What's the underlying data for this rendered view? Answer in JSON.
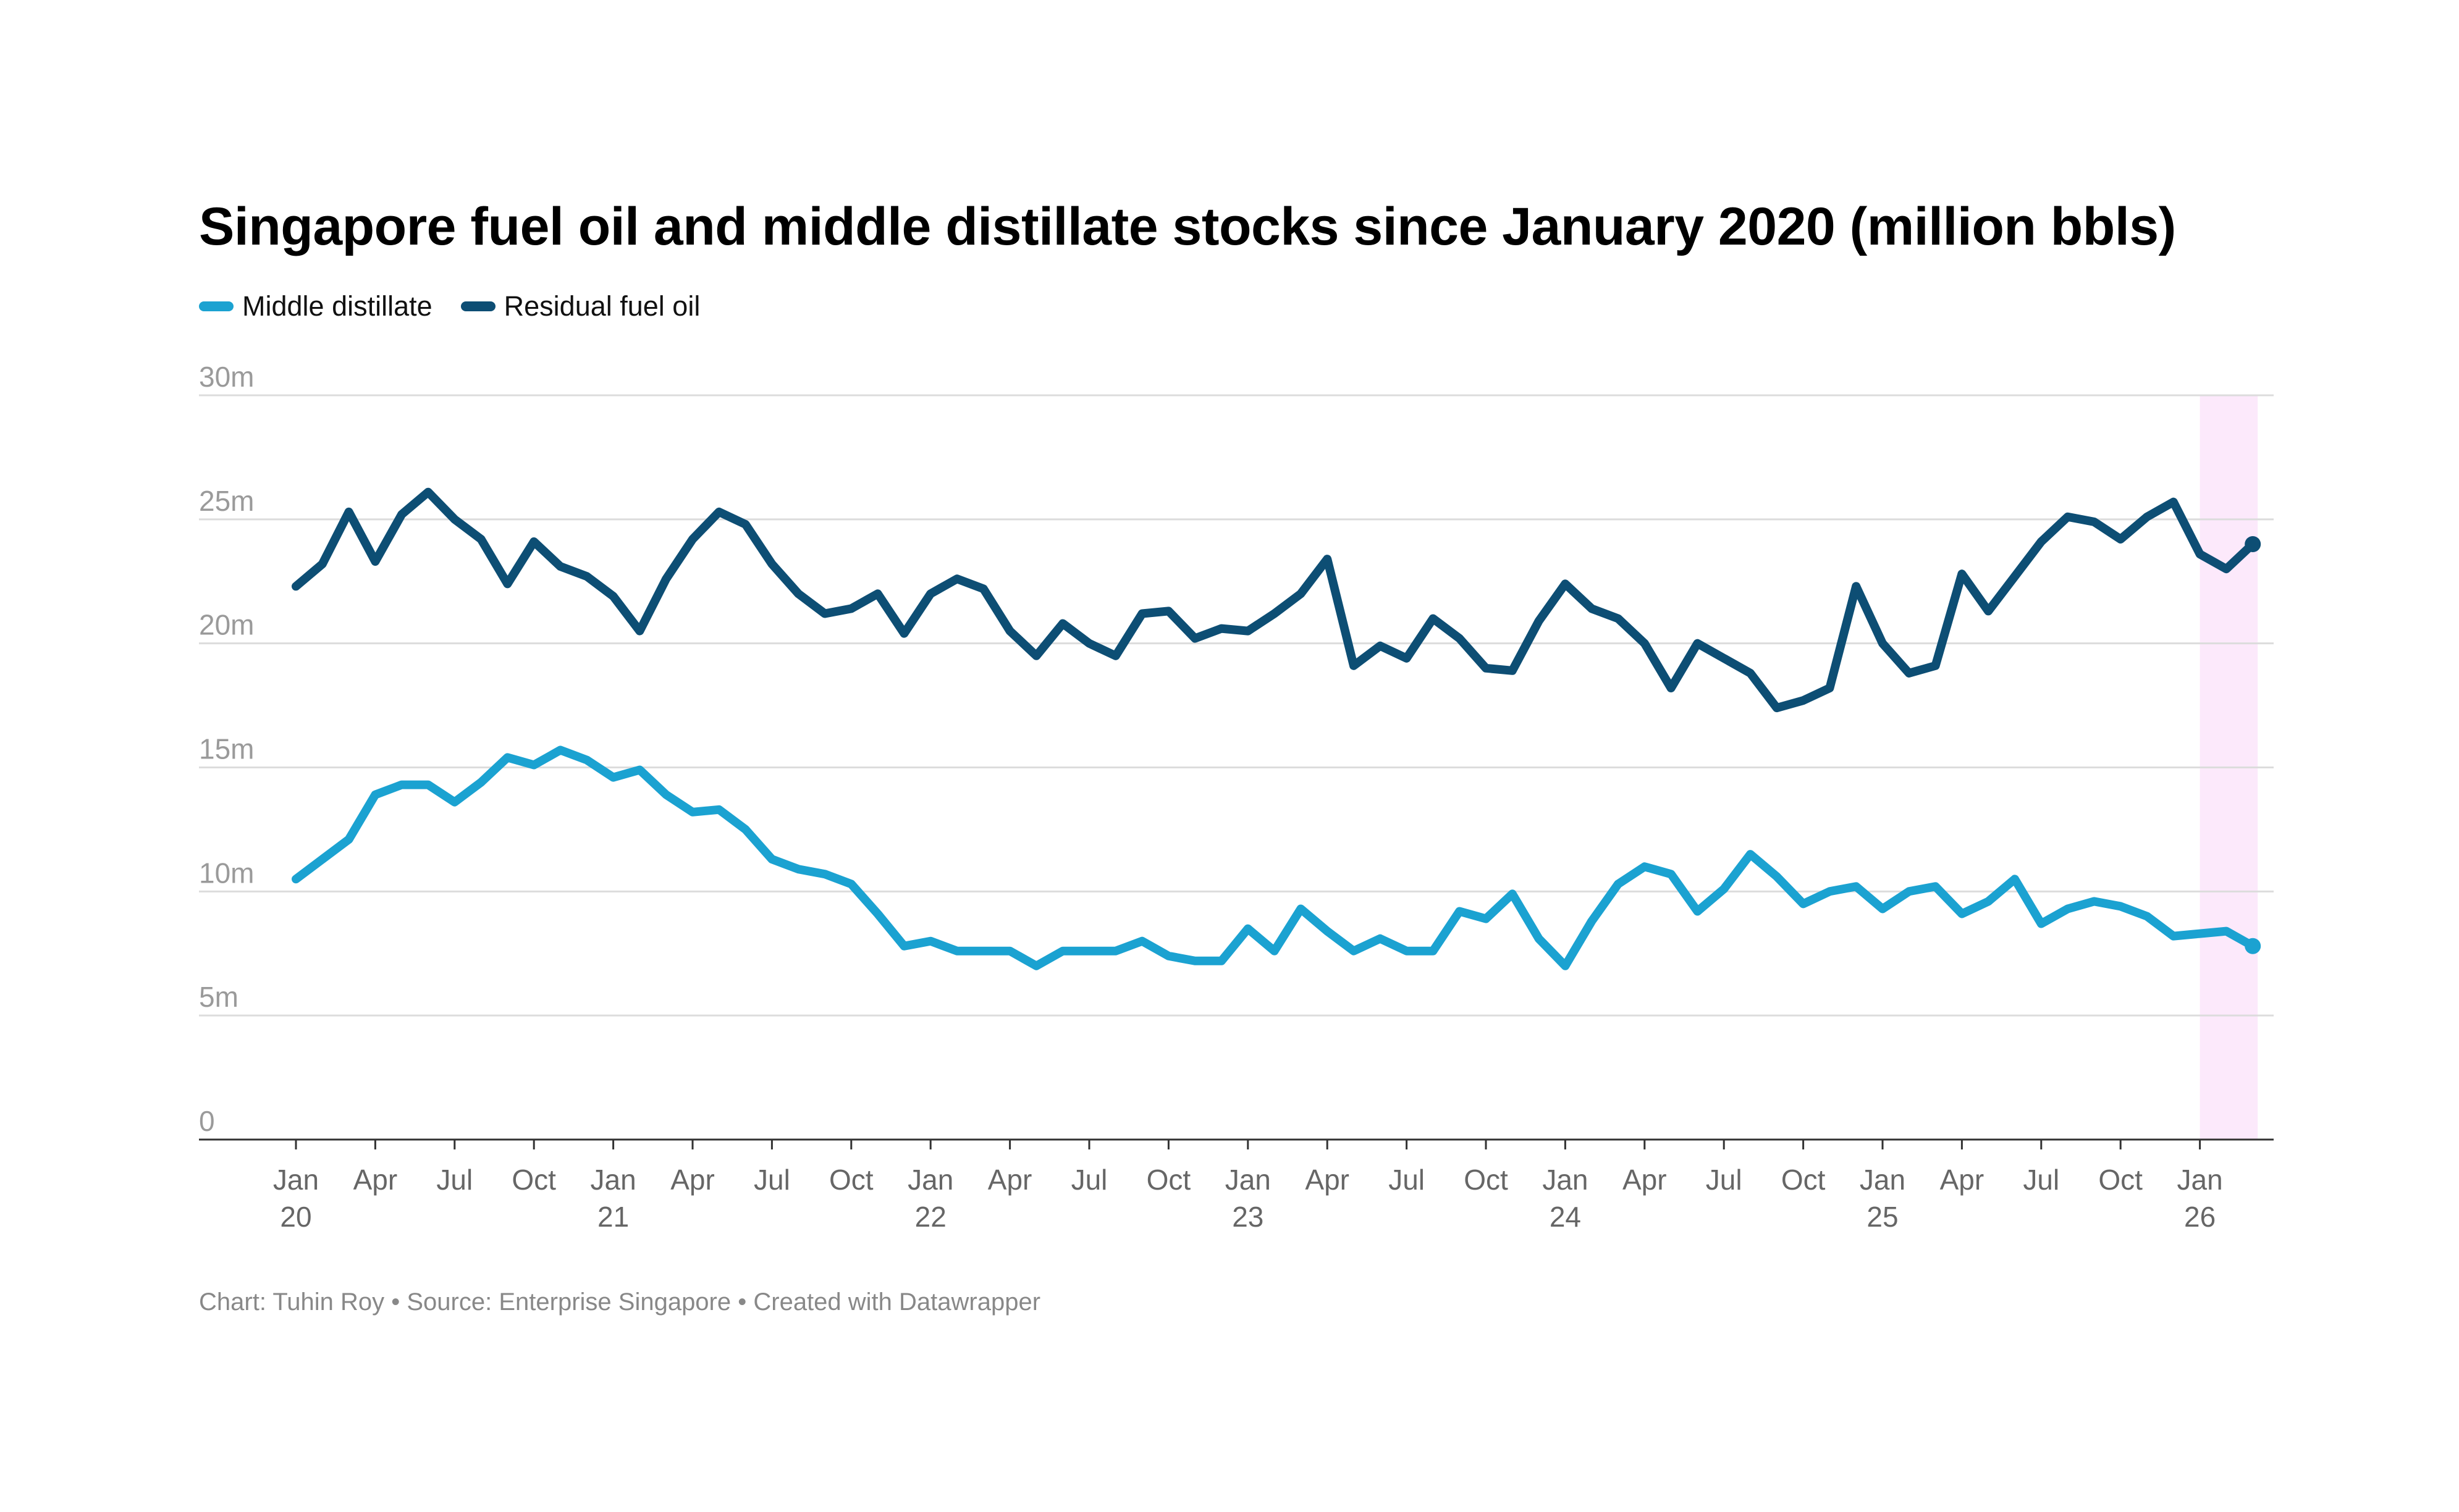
{
  "footer": {
    "credit": "Chart: Tuhin Roy",
    "separator": " • ",
    "source": "Source: Enterprise Singapore",
    "tool": "Created with Datawrapper"
  },
  "chart_data": {
    "type": "line",
    "title": "Singapore fuel oil and middle distillate stocks since January 2020 (million bbls)",
    "ylabel": "",
    "xlabel": "",
    "ylim": [
      0,
      30
    ],
    "yticks": [
      {
        "value": 0,
        "label": "0"
      },
      {
        "value": 5,
        "label": "5m"
      },
      {
        "value": 10,
        "label": "10m"
      },
      {
        "value": 15,
        "label": "15m"
      },
      {
        "value": 20,
        "label": "20m"
      },
      {
        "value": 25,
        "label": "25m"
      },
      {
        "value": 30,
        "label": "30m"
      }
    ],
    "start": {
      "year": 2020,
      "month": 1
    },
    "xticks": [
      {
        "index": 0,
        "label": "Jan",
        "year": "20"
      },
      {
        "index": 3,
        "label": "Apr"
      },
      {
        "index": 6,
        "label": "Jul"
      },
      {
        "index": 9,
        "label": "Oct"
      },
      {
        "index": 12,
        "label": "Jan",
        "year": "21"
      },
      {
        "index": 15,
        "label": "Apr"
      },
      {
        "index": 18,
        "label": "Jul"
      },
      {
        "index": 21,
        "label": "Oct"
      },
      {
        "index": 24,
        "label": "Jan",
        "year": "22"
      },
      {
        "index": 27,
        "label": "Apr"
      },
      {
        "index": 30,
        "label": "Jul"
      },
      {
        "index": 33,
        "label": "Oct"
      },
      {
        "index": 36,
        "label": "Jan",
        "year": "23"
      },
      {
        "index": 39,
        "label": "Apr"
      },
      {
        "index": 42,
        "label": "Jul"
      },
      {
        "index": 45,
        "label": "Oct"
      },
      {
        "index": 48,
        "label": "Jan",
        "year": "24"
      },
      {
        "index": 51,
        "label": "Apr"
      },
      {
        "index": 54,
        "label": "Jul"
      },
      {
        "index": 57,
        "label": "Oct"
      },
      {
        "index": 60,
        "label": "Jan",
        "year": "25"
      },
      {
        "index": 63,
        "label": "Apr"
      },
      {
        "index": 66,
        "label": "Jul"
      },
      {
        "index": 69,
        "label": "Oct"
      },
      {
        "index": 72,
        "label": "Jan",
        "year": "26"
      }
    ],
    "highlight": {
      "from_index": 72,
      "to_index": 74,
      "color": "#fce9fb"
    },
    "series": [
      {
        "name": "Middle distillate",
        "color": "#1ba2d1",
        "values": [
          10.5,
          11.3,
          12.1,
          13.9,
          14.3,
          14.3,
          13.6,
          14.4,
          15.4,
          15.1,
          15.7,
          15.3,
          14.6,
          14.9,
          13.9,
          13.2,
          13.3,
          12.5,
          11.3,
          10.9,
          10.7,
          10.3,
          9.1,
          7.8,
          8.0,
          7.6,
          7.6,
          7.6,
          7.0,
          7.6,
          7.6,
          7.6,
          8.0,
          7.4,
          7.2,
          7.2,
          8.5,
          7.6,
          9.3,
          8.4,
          7.6,
          8.1,
          7.6,
          7.6,
          9.2,
          8.9,
          9.9,
          8.1,
          7.0,
          8.8,
          10.3,
          11.0,
          10.7,
          9.2,
          10.1,
          11.5,
          10.6,
          9.5,
          10.0,
          10.2,
          9.3,
          10.0,
          10.2,
          9.1,
          9.6,
          10.5,
          8.7,
          9.3,
          9.6,
          9.4,
          9.0,
          8.2,
          8.3,
          8.4,
          7.8
        ]
      },
      {
        "name": "Residual fuel oil",
        "color": "#0d4e74",
        "values": [
          22.3,
          23.2,
          25.3,
          23.3,
          25.2,
          26.1,
          25.0,
          24.2,
          22.4,
          24.1,
          23.1,
          22.7,
          21.9,
          20.5,
          22.6,
          24.2,
          25.3,
          24.8,
          23.2,
          22.0,
          21.2,
          21.4,
          22.0,
          20.4,
          22.0,
          22.6,
          22.2,
          20.5,
          19.5,
          20.8,
          20.0,
          19.5,
          21.2,
          21.3,
          20.2,
          20.6,
          20.5,
          21.2,
          22.0,
          23.4,
          19.1,
          19.9,
          19.4,
          21.0,
          20.2,
          19.0,
          18.9,
          20.9,
          22.4,
          21.4,
          21.0,
          20.0,
          18.2,
          20.0,
          19.4,
          18.8,
          17.4,
          17.7,
          18.2,
          22.3,
          20.0,
          18.8,
          19.1,
          22.8,
          21.3,
          22.7,
          24.1,
          25.1,
          24.9,
          24.2,
          25.1,
          25.7,
          23.6,
          23.0,
          24.0
        ]
      }
    ]
  }
}
